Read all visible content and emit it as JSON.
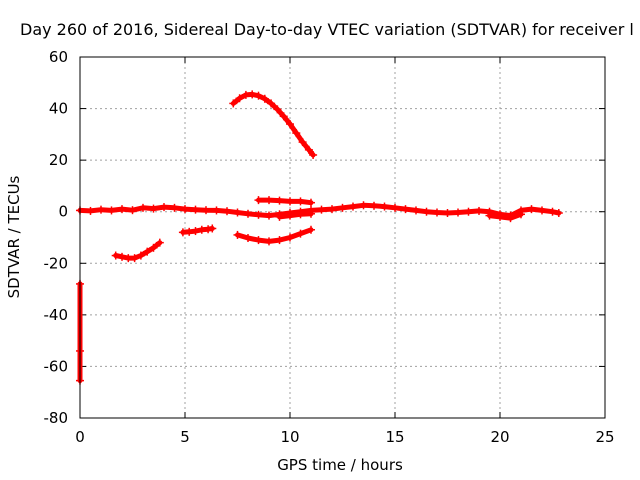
{
  "chart_data": {
    "type": "scatter",
    "title": "Day 260 of 2016, Sidereal Day-to-day VTEC variation (SDTVAR) for receiver l",
    "xlabel": "GPS time / hours",
    "ylabel": "SDTVAR / TECUs",
    "xlim": [
      0,
      25
    ],
    "ylim": [
      -80,
      60
    ],
    "xticks": [
      0,
      5,
      10,
      15,
      20,
      25
    ],
    "yticks": [
      -80,
      -60,
      -40,
      -20,
      0,
      20,
      40,
      60
    ],
    "grid": true,
    "legend": "none",
    "series": [
      {
        "color": "#ff0000",
        "x": [
          0.0,
          0.5,
          1.0,
          1.5,
          2.0,
          2.5,
          3.0,
          3.5,
          4.0,
          4.5,
          5.0,
          5.5,
          6.0,
          6.5,
          7.0,
          7.5,
          8.0,
          8.5,
          9.0,
          9.5,
          10.0,
          10.5,
          11.0,
          11.5,
          12.0,
          12.5,
          13.0,
          13.5,
          14.0,
          14.5,
          15.0,
          15.5,
          16.0,
          16.5,
          17.0,
          17.5,
          18.0,
          18.5,
          19.0,
          19.5,
          20.0,
          20.5,
          21.0,
          21.5,
          22.0,
          22.5,
          22.8
        ],
        "y": [
          0.5,
          0.3,
          0.8,
          0.5,
          1.0,
          0.6,
          1.5,
          1.2,
          1.8,
          1.5,
          1.0,
          0.8,
          0.6,
          0.5,
          0.2,
          -0.3,
          -0.8,
          -1.2,
          -1.5,
          -1.0,
          -0.5,
          0.0,
          0.5,
          0.8,
          1.0,
          1.5,
          2.0,
          2.5,
          2.3,
          2.0,
          1.5,
          1.0,
          0.5,
          0.0,
          -0.3,
          -0.5,
          -0.3,
          0.0,
          0.3,
          0.0,
          -1.0,
          -1.5,
          0.5,
          1.0,
          0.5,
          0.0,
          -0.5
        ]
      },
      {
        "color": "#ff0000",
        "x": [
          7.3,
          7.6,
          7.9,
          8.2,
          8.5,
          8.8,
          9.1,
          9.4,
          9.7,
          10.0,
          10.3,
          10.6,
          10.9,
          11.1
        ],
        "y": [
          42.0,
          44.0,
          45.3,
          45.5,
          45.0,
          43.8,
          42.0,
          39.7,
          37.0,
          34.0,
          30.5,
          27.0,
          24.0,
          22.0
        ]
      },
      {
        "color": "#ff0000",
        "x": [
          7.5,
          8.0,
          8.5,
          9.0,
          9.5,
          10.0,
          10.5,
          11.0
        ],
        "y": [
          -9.0,
          -10.2,
          -11.0,
          -11.5,
          -11.0,
          -10.0,
          -8.5,
          -7.0
        ]
      },
      {
        "color": "#ff0000",
        "x": [
          8.5,
          9.0,
          9.5,
          10.0,
          10.5,
          11.0
        ],
        "y": [
          4.5,
          4.5,
          4.3,
          4.0,
          4.0,
          3.5
        ]
      },
      {
        "color": "#ff0000",
        "x": [
          9.5,
          10.0,
          10.5,
          11.0
        ],
        "y": [
          -2.0,
          -1.5,
          -1.0,
          -0.8
        ]
      },
      {
        "color": "#ff0000",
        "x": [
          1.7,
          2.0,
          2.3,
          2.6,
          2.9,
          3.2,
          3.5,
          3.8
        ],
        "y": [
          -17.0,
          -17.5,
          -18.0,
          -18.0,
          -17.0,
          -15.5,
          -14.0,
          -12.0
        ]
      },
      {
        "color": "#ff0000",
        "x": [
          4.9,
          5.2,
          5.5,
          5.8,
          6.1,
          6.3
        ],
        "y": [
          -8.0,
          -7.8,
          -7.5,
          -7.0,
          -6.8,
          -6.5
        ]
      },
      {
        "color": "#ff0000",
        "x": [
          19.5,
          20.0,
          20.5,
          21.0
        ],
        "y": [
          -1.5,
          -2.0,
          -2.5,
          -1.0
        ]
      },
      {
        "color": "#ff0000",
        "x": [
          0.0,
          0.0,
          0.0
        ],
        "y": [
          -28.0,
          -54.0,
          -65.5
        ]
      }
    ]
  }
}
